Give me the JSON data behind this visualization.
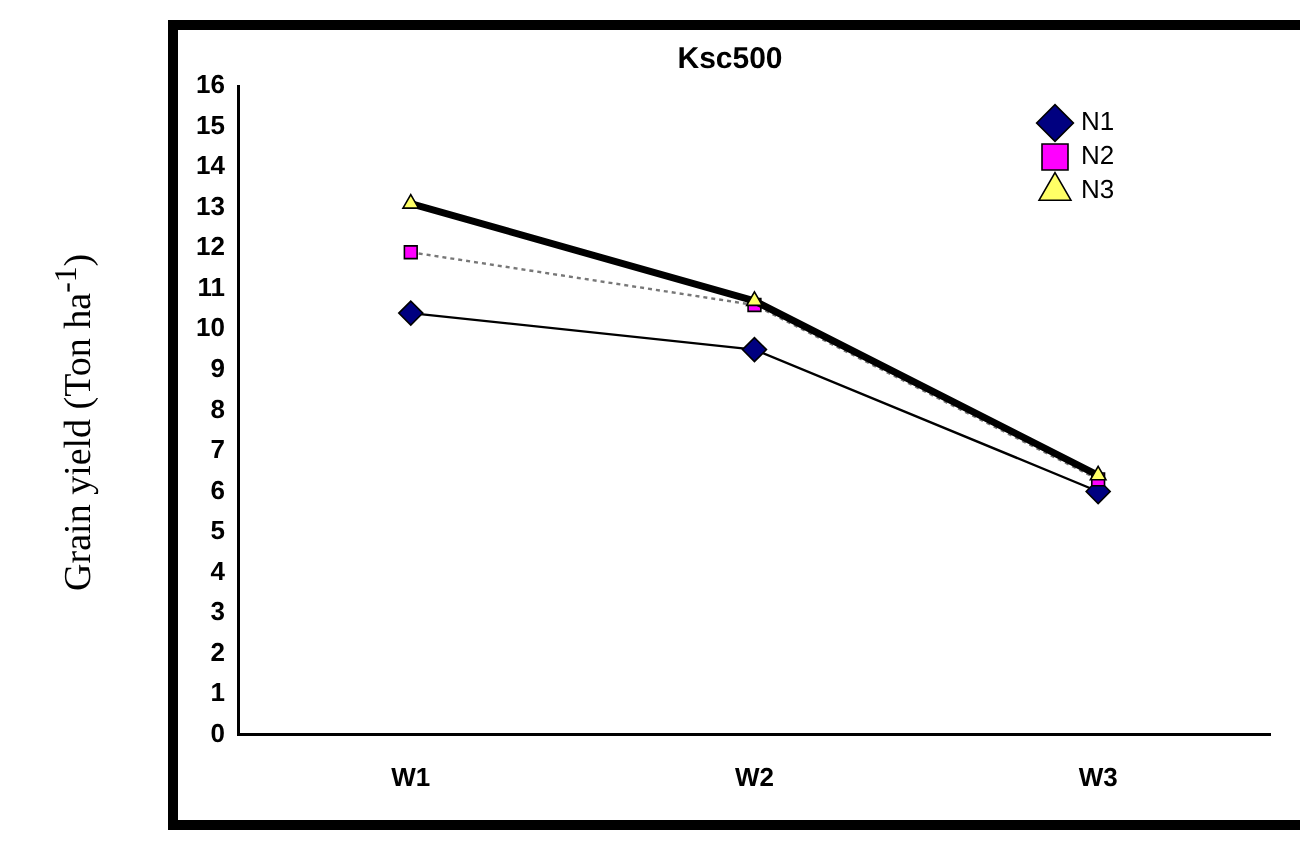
{
  "chart_data": {
    "type": "line",
    "title": "Ksc500",
    "ylabel": "Grain yield (Ton ha$^{-1}$)",
    "categories": [
      "W1",
      "W2",
      "W3"
    ],
    "series": [
      {
        "name": "N1",
        "color": "#000080",
        "values": [
          10.4,
          9.5,
          6.0
        ],
        "marker": "diamond",
        "line_style": "solid"
      },
      {
        "name": "N2",
        "color": "#ff00ff",
        "values": [
          11.9,
          10.6,
          6.3
        ],
        "marker": "square",
        "line_style": "dotted"
      },
      {
        "name": "N3",
        "color": "#ffff66",
        "values": [
          13.1,
          10.7,
          6.4
        ],
        "marker": "triangle",
        "line_style": "solid"
      }
    ],
    "ylim": [
      0,
      16
    ],
    "yticks": [
      0,
      1,
      2,
      3,
      4,
      5,
      6,
      7,
      8,
      9,
      10,
      11,
      12,
      13,
      14,
      15,
      16
    ],
    "grid": false,
    "legend": "top right"
  }
}
